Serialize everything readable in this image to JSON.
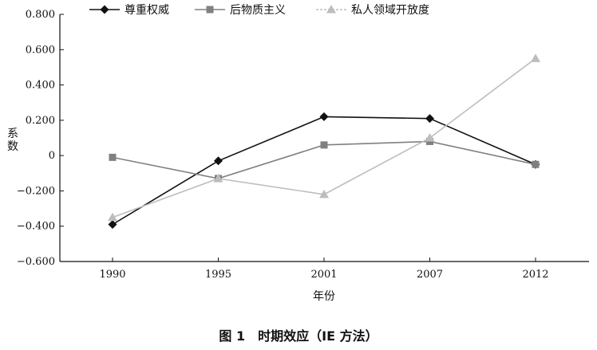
{
  "caption": "图 1　时期效应（IE 方法）",
  "chart_data": {
    "type": "line",
    "categories": [
      "1990",
      "1995",
      "2001",
      "2007",
      "2012"
    ],
    "xlabel": "年份",
    "ylabel": "系数",
    "ylim": [
      -0.6,
      0.8
    ],
    "yticks": [
      -0.6,
      -0.4,
      -0.2,
      0,
      0.2,
      0.4,
      0.6,
      0.8
    ],
    "ytick_labels": [
      "−0.600",
      "−0.400",
      "−0.200",
      "0",
      "0.200",
      "0.400",
      "0.600",
      "0.800"
    ],
    "grid": false,
    "legend_position": "top",
    "series": [
      {
        "name": "尊重权威",
        "marker": "diamond",
        "color": "#111111",
        "values": [
          -0.39,
          -0.03,
          0.22,
          0.21,
          -0.05
        ]
      },
      {
        "name": "后物质主义",
        "marker": "square",
        "color": "#808080",
        "values": [
          -0.01,
          -0.13,
          0.06,
          0.08,
          -0.05
        ]
      },
      {
        "name": "私人领域开放度",
        "marker": "triangle",
        "color": "#bdbdbd",
        "values": [
          -0.35,
          -0.13,
          -0.22,
          0.1,
          0.55
        ]
      }
    ]
  }
}
